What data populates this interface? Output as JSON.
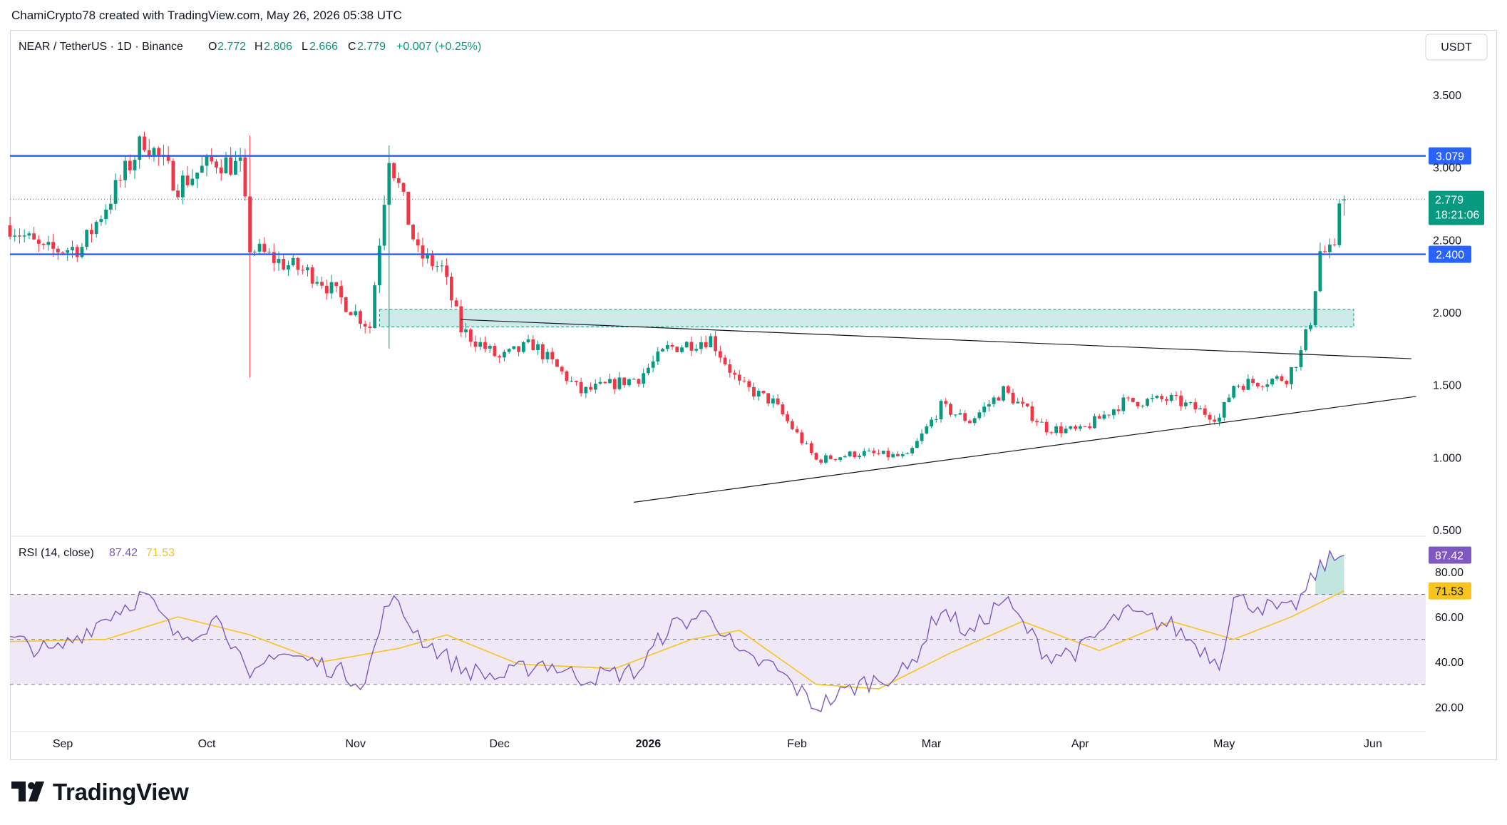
{
  "attribution": "ChamiCrypto78 created with TradingView.com, May 26, 2026 05:38 UTC",
  "brand": "TradingView",
  "header": {
    "symbol": "NEAR / TetherUS · 1D · Binance",
    "o_label": "O",
    "o_value": "2.772",
    "h_label": "H",
    "h_value": "2.806",
    "l_label": "L",
    "l_value": "2.666",
    "c_label": "C",
    "c_value": "2.779",
    "change": "+0.007 (+0.25%)"
  },
  "currency_button": "USDT",
  "rsi_header": {
    "label": "RSI (14, close)",
    "rsi_value": "87.42",
    "ma_value": "71.53"
  },
  "colors": {
    "up": "#089981",
    "down": "#f23645",
    "level_line": "#2962ff",
    "zone_fill": "#b2dfdb",
    "rsi_line": "#7e57c2",
    "rsi_ma": "#f7c41f",
    "rsi_band": "#ede7f6",
    "trendline": "#131722",
    "price_tag": "#089981"
  },
  "chart_data": [
    {
      "type": "candlestick",
      "symbol": "NEAR / TetherUS",
      "interval": "1D",
      "exchange": "Binance",
      "x_start": "2025-08-21",
      "x_end": "2026-06-12",
      "x_ticks": [
        {
          "label": "Sep",
          "date": "2025-09-01"
        },
        {
          "label": "Oct",
          "date": "2025-10-01"
        },
        {
          "label": "Nov",
          "date": "2025-11-01"
        },
        {
          "label": "Dec",
          "date": "2025-12-01"
        },
        {
          "label": "2026",
          "date": "2026-01-01"
        },
        {
          "label": "Feb",
          "date": "2026-02-01"
        },
        {
          "label": "Mar",
          "date": "2026-03-01"
        },
        {
          "label": "Apr",
          "date": "2026-04-01"
        },
        {
          "label": "May",
          "date": "2026-05-01"
        },
        {
          "label": "Jun",
          "date": "2026-06-01"
        }
      ],
      "y_ticks": [
        "3.500",
        "3.000",
        "2.500",
        "2.000",
        "1.500",
        "1.000",
        "0.500"
      ],
      "ylim": [
        0.5,
        3.5
      ],
      "keypoints": [
        {
          "date": "2025-08-21",
          "close": 2.6
        },
        {
          "date": "2025-08-28",
          "close": 2.42
        },
        {
          "date": "2025-09-05",
          "close": 2.45
        },
        {
          "date": "2025-09-12",
          "close": 2.85
        },
        {
          "date": "2025-09-18",
          "close": 3.2
        },
        {
          "date": "2025-09-25",
          "close": 2.88
        },
        {
          "date": "2025-10-03",
          "close": 3.05
        },
        {
          "date": "2025-10-08",
          "close": 3.0
        },
        {
          "date": "2025-10-10",
          "close": 2.45
        },
        {
          "date": "2025-10-16",
          "close": 2.35
        },
        {
          "date": "2025-10-24",
          "close": 2.25
        },
        {
          "date": "2025-11-04",
          "close": 1.9
        },
        {
          "date": "2025-11-08",
          "close": 3.1
        },
        {
          "date": "2025-11-14",
          "close": 2.4
        },
        {
          "date": "2025-11-19",
          "close": 2.3
        },
        {
          "date": "2025-11-23",
          "close": 1.88
        },
        {
          "date": "2025-12-01",
          "close": 1.68
        },
        {
          "date": "2025-12-08",
          "close": 1.78
        },
        {
          "date": "2025-12-18",
          "close": 1.45
        },
        {
          "date": "2025-12-30",
          "close": 1.55
        },
        {
          "date": "2026-01-05",
          "close": 1.75
        },
        {
          "date": "2026-01-14",
          "close": 1.82
        },
        {
          "date": "2026-01-20",
          "close": 1.5
        },
        {
          "date": "2026-01-27",
          "close": 1.38
        },
        {
          "date": "2026-02-05",
          "close": 0.98
        },
        {
          "date": "2026-02-14",
          "close": 1.03
        },
        {
          "date": "2026-02-24",
          "close": 1.0
        },
        {
          "date": "2026-03-03",
          "close": 1.35
        },
        {
          "date": "2026-03-09",
          "close": 1.25
        },
        {
          "date": "2026-03-16",
          "close": 1.46
        },
        {
          "date": "2026-03-25",
          "close": 1.2
        },
        {
          "date": "2026-04-01",
          "close": 1.18
        },
        {
          "date": "2026-04-10",
          "close": 1.38
        },
        {
          "date": "2026-04-20",
          "close": 1.4
        },
        {
          "date": "2026-04-30",
          "close": 1.27
        },
        {
          "date": "2026-05-03",
          "close": 1.5
        },
        {
          "date": "2026-05-14",
          "close": 1.55
        },
        {
          "date": "2026-05-17",
          "close": 1.72
        },
        {
          "date": "2026-05-19",
          "close": 1.95
        },
        {
          "date": "2026-05-21",
          "close": 2.42
        },
        {
          "date": "2026-05-24",
          "close": 2.4
        },
        {
          "date": "2026-05-25",
          "close": 2.77
        },
        {
          "date": "2026-05-26",
          "close": 2.779
        }
      ],
      "last_candle": {
        "date": "2026-05-26",
        "open": 2.772,
        "high": 2.806,
        "low": 2.666,
        "close": 2.779
      },
      "spikes": [
        {
          "date": "2025-10-10",
          "low": 1.55,
          "high": 3.22
        },
        {
          "date": "2025-11-08",
          "low": 1.75,
          "high": 3.15
        }
      ],
      "horizontal_levels": [
        {
          "price": 3.079,
          "label": "3.079"
        },
        {
          "price": 2.4,
          "label": "2.400"
        }
      ],
      "zone": {
        "from": "2025-11-06",
        "to": "2026-05-28",
        "low": 1.9,
        "high": 2.02
      },
      "trendlines": [
        {
          "from": {
            "date": "2025-11-23",
            "price": 1.95
          },
          "to": {
            "date": "2026-06-09",
            "price": 1.68
          }
        },
        {
          "from": {
            "date": "2025-12-29",
            "price": 0.69
          },
          "to": {
            "date": "2026-06-10",
            "price": 1.42
          }
        }
      ],
      "last_price_tag": {
        "price": 2.779,
        "label": "2.779",
        "countdown": "18:21:06"
      }
    },
    {
      "type": "line",
      "title": "RSI (14, close)",
      "y_ticks": [
        "80.00",
        "60.00",
        "40.00",
        "20.00"
      ],
      "ylim": [
        16,
        92
      ],
      "band": [
        30,
        70
      ],
      "mid": 50,
      "series": [
        {
          "name": "RSI",
          "last": 87.42,
          "points": [
            {
              "date": "2025-08-21",
              "value": 50
            },
            {
              "date": "2025-08-30",
              "value": 44
            },
            {
              "date": "2025-09-10",
              "value": 60
            },
            {
              "date": "2025-09-18",
              "value": 70
            },
            {
              "date": "2025-09-25",
              "value": 50
            },
            {
              "date": "2025-10-04",
              "value": 60
            },
            {
              "date": "2025-10-10",
              "value": 30
            },
            {
              "date": "2025-10-15",
              "value": 45
            },
            {
              "date": "2025-10-26",
              "value": 38
            },
            {
              "date": "2025-11-03",
              "value": 31
            },
            {
              "date": "2025-11-08",
              "value": 69
            },
            {
              "date": "2025-11-15",
              "value": 50
            },
            {
              "date": "2025-11-23",
              "value": 37
            },
            {
              "date": "2025-12-01",
              "value": 33
            },
            {
              "date": "2025-12-10",
              "value": 40
            },
            {
              "date": "2025-12-18",
              "value": 33
            },
            {
              "date": "2025-12-30",
              "value": 36
            },
            {
              "date": "2026-01-05",
              "value": 55
            },
            {
              "date": "2026-01-14",
              "value": 62
            },
            {
              "date": "2026-01-20",
              "value": 42
            },
            {
              "date": "2026-01-27",
              "value": 38
            },
            {
              "date": "2026-02-05",
              "value": 20
            },
            {
              "date": "2026-02-14",
              "value": 30
            },
            {
              "date": "2026-02-24",
              "value": 36
            },
            {
              "date": "2026-03-03",
              "value": 64
            },
            {
              "date": "2026-03-09",
              "value": 52
            },
            {
              "date": "2026-03-16",
              "value": 68
            },
            {
              "date": "2026-03-25",
              "value": 43
            },
            {
              "date": "2026-04-01",
              "value": 45
            },
            {
              "date": "2026-04-10",
              "value": 62
            },
            {
              "date": "2026-04-20",
              "value": 56
            },
            {
              "date": "2026-04-30",
              "value": 40
            },
            {
              "date": "2026-05-03",
              "value": 68
            },
            {
              "date": "2026-05-14",
              "value": 62
            },
            {
              "date": "2026-05-17",
              "value": 68
            },
            {
              "date": "2026-05-21",
              "value": 82
            },
            {
              "date": "2026-05-23",
              "value": 85
            },
            {
              "date": "2026-05-26",
              "value": 87.42
            }
          ]
        },
        {
          "name": "RSI-based MA",
          "last": 71.53,
          "points": [
            {
              "date": "2025-08-21",
              "value": 49
            },
            {
              "date": "2025-09-10",
              "value": 50
            },
            {
              "date": "2025-09-25",
              "value": 60
            },
            {
              "date": "2025-10-10",
              "value": 52
            },
            {
              "date": "2025-10-25",
              "value": 40
            },
            {
              "date": "2025-11-10",
              "value": 46
            },
            {
              "date": "2025-11-20",
              "value": 52
            },
            {
              "date": "2025-12-05",
              "value": 39
            },
            {
              "date": "2025-12-25",
              "value": 37
            },
            {
              "date": "2026-01-10",
              "value": 50
            },
            {
              "date": "2026-01-20",
              "value": 54
            },
            {
              "date": "2026-02-05",
              "value": 30
            },
            {
              "date": "2026-02-18",
              "value": 28
            },
            {
              "date": "2026-03-05",
              "value": 44
            },
            {
              "date": "2026-03-20",
              "value": 58
            },
            {
              "date": "2026-04-05",
              "value": 45
            },
            {
              "date": "2026-04-20",
              "value": 58
            },
            {
              "date": "2026-05-03",
              "value": 50
            },
            {
              "date": "2026-05-15",
              "value": 60
            },
            {
              "date": "2026-05-26",
              "value": 71.53
            }
          ]
        }
      ]
    }
  ]
}
